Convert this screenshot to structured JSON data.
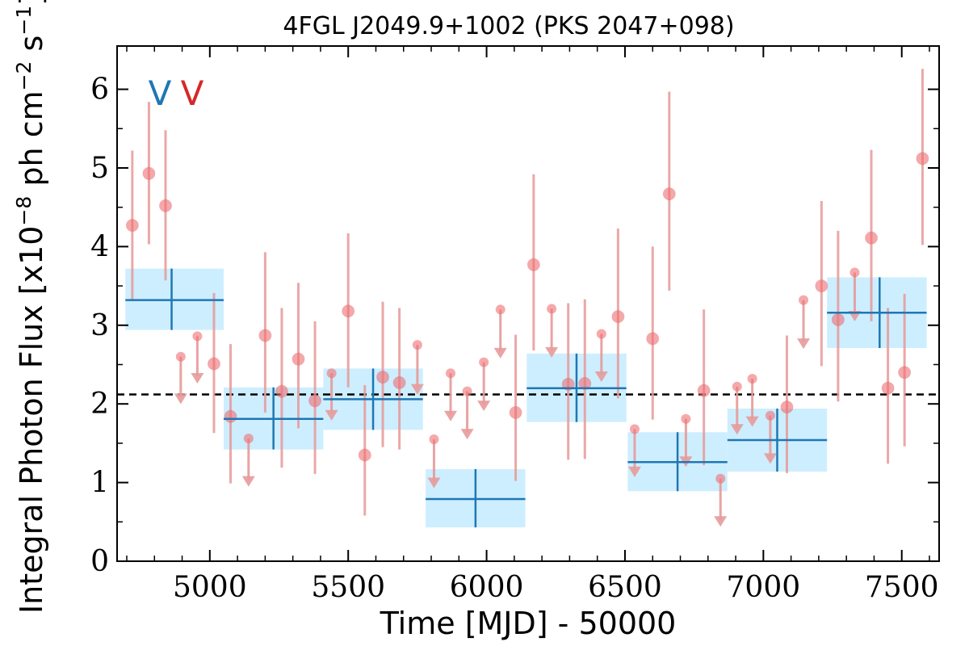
{
  "chart_data": {
    "type": "scatter",
    "title": "4FGL J2049.9+1002 (PKS 2047+098)",
    "xlabel": "Time [MJD] - 50000",
    "ylabel": "Integral Photon Flux [x10",
    "ylabel_exp1": "−8",
    "ylabel_mid": " ph cm",
    "ylabel_exp2": "−2",
    "ylabel_mid2": " s",
    "ylabel_exp3": "−1",
    "ylabel_end": "]",
    "xlim": [
      4665,
      7635
    ],
    "ylim": [
      0,
      6.55
    ],
    "xticks": [
      5000,
      5500,
      6000,
      6500,
      7000,
      7500
    ],
    "xtick_labels": [
      "5000",
      "5500",
      "6000",
      "6500",
      "7000",
      "7500"
    ],
    "yticks": [
      0,
      1,
      2,
      3,
      4,
      5,
      6
    ],
    "ytick_labels": [
      "0",
      "1",
      "2",
      "3",
      "4",
      "5",
      "6"
    ],
    "mean_flux": 2.12,
    "markers": [
      {
        "label": "V",
        "color": "#1f77b4"
      },
      {
        "label": "V",
        "color": "#d62728"
      }
    ],
    "colors": {
      "points": "#ef6f73",
      "errorbars": "#e79a9a",
      "bins": "#1f77b4",
      "bin_fill": "#cdeefe"
    },
    "series": [
      {
        "kind": "monthly_detections",
        "points": [
          {
            "x": 4720,
            "y": 4.27,
            "ylo": 3.32,
            "yhi": 5.22
          },
          {
            "x": 4780,
            "y": 4.93,
            "ylo": 4.03,
            "yhi": 5.84
          },
          {
            "x": 4840,
            "y": 4.52,
            "ylo": 3.57,
            "yhi": 5.48
          },
          {
            "x": 5015,
            "y": 2.51,
            "ylo": 1.63,
            "yhi": 3.41
          },
          {
            "x": 5075,
            "y": 1.84,
            "ylo": 0.99,
            "yhi": 2.76
          },
          {
            "x": 5200,
            "y": 2.87,
            "ylo": 1.89,
            "yhi": 3.93
          },
          {
            "x": 5260,
            "y": 2.16,
            "ylo": 1.19,
            "yhi": 3.22
          },
          {
            "x": 5320,
            "y": 2.57,
            "ylo": 1.69,
            "yhi": 3.54
          },
          {
            "x": 5380,
            "y": 2.04,
            "ylo": 1.11,
            "yhi": 3.05
          },
          {
            "x": 5500,
            "y": 3.18,
            "ylo": 2.21,
            "yhi": 4.17
          },
          {
            "x": 5560,
            "y": 1.35,
            "ylo": 0.58,
            "yhi": 2.24
          },
          {
            "x": 5625,
            "y": 2.34,
            "ylo": 1.45,
            "yhi": 3.3
          },
          {
            "x": 5685,
            "y": 2.27,
            "ylo": 1.42,
            "yhi": 3.22
          },
          {
            "x": 6105,
            "y": 1.89,
            "ylo": 1.02,
            "yhi": 2.88
          },
          {
            "x": 6170,
            "y": 3.77,
            "ylo": 2.68,
            "yhi": 4.92
          },
          {
            "x": 6295,
            "y": 2.25,
            "ylo": 1.29,
            "yhi": 3.28
          },
          {
            "x": 6355,
            "y": 2.26,
            "ylo": 1.3,
            "yhi": 3.33
          },
          {
            "x": 6475,
            "y": 3.11,
            "ylo": 2.07,
            "yhi": 4.23
          },
          {
            "x": 6600,
            "y": 2.83,
            "ylo": 1.8,
            "yhi": 4.0
          },
          {
            "x": 6660,
            "y": 4.67,
            "ylo": 3.44,
            "yhi": 5.97
          },
          {
            "x": 6785,
            "y": 2.17,
            "ylo": 1.22,
            "yhi": 3.2
          },
          {
            "x": 7085,
            "y": 1.96,
            "ylo": 1.12,
            "yhi": 2.87
          },
          {
            "x": 7210,
            "y": 3.5,
            "ylo": 2.48,
            "yhi": 4.58
          },
          {
            "x": 7270,
            "y": 3.07,
            "ylo": 2.03,
            "yhi": 4.2
          },
          {
            "x": 7390,
            "y": 4.11,
            "ylo": 3.05,
            "yhi": 5.23
          },
          {
            "x": 7450,
            "y": 2.2,
            "ylo": 1.24,
            "yhi": 3.22
          },
          {
            "x": 7510,
            "y": 2.4,
            "ylo": 1.46,
            "yhi": 3.4
          },
          {
            "x": 7575,
            "y": 5.12,
            "ylo": 4.02,
            "yhi": 6.26
          }
        ]
      },
      {
        "kind": "upper_limits",
        "points": [
          {
            "x": 4895,
            "y": 2.6,
            "tip": 2.05
          },
          {
            "x": 4955,
            "y": 2.86,
            "tip": 2.31
          },
          {
            "x": 5140,
            "y": 1.56,
            "tip": 1.0
          },
          {
            "x": 5440,
            "y": 2.39,
            "tip": 1.84
          },
          {
            "x": 5750,
            "y": 2.75,
            "tip": 2.17
          },
          {
            "x": 5810,
            "y": 1.55,
            "tip": 0.98
          },
          {
            "x": 5870,
            "y": 2.39,
            "tip": 1.83
          },
          {
            "x": 5930,
            "y": 2.16,
            "tip": 1.6
          },
          {
            "x": 5990,
            "y": 2.53,
            "tip": 1.96
          },
          {
            "x": 6050,
            "y": 3.2,
            "tip": 2.63
          },
          {
            "x": 6235,
            "y": 3.21,
            "tip": 2.64
          },
          {
            "x": 6415,
            "y": 2.89,
            "tip": 2.33
          },
          {
            "x": 6535,
            "y": 1.68,
            "tip": 1.12
          },
          {
            "x": 6720,
            "y": 1.81,
            "tip": 1.25
          },
          {
            "x": 6845,
            "y": 1.05,
            "tip": 0.49
          },
          {
            "x": 6905,
            "y": 2.22,
            "tip": 1.66
          },
          {
            "x": 6960,
            "y": 2.32,
            "tip": 1.76
          },
          {
            "x": 7025,
            "y": 1.85,
            "tip": 1.29
          },
          {
            "x": 7145,
            "y": 3.32,
            "tip": 2.75
          },
          {
            "x": 7330,
            "y": 3.67,
            "tip": 3.1
          }
        ]
      },
      {
        "kind": "bayesian_blocks",
        "blocks": [
          {
            "x0": 4695,
            "x1": 5050,
            "xc": 4862,
            "y": 3.32,
            "ylo": 2.94,
            "yhi": 3.72
          },
          {
            "x0": 5050,
            "x1": 5410,
            "xc": 5230,
            "y": 1.81,
            "ylo": 1.42,
            "yhi": 2.21
          },
          {
            "x0": 5410,
            "x1": 5770,
            "xc": 5590,
            "y": 2.06,
            "ylo": 1.67,
            "yhi": 2.45
          },
          {
            "x0": 5780,
            "x1": 6140,
            "xc": 5960,
            "y": 0.79,
            "ylo": 0.43,
            "yhi": 1.17
          },
          {
            "x0": 6145,
            "x1": 6505,
            "xc": 6325,
            "y": 2.2,
            "ylo": 1.77,
            "yhi": 2.64
          },
          {
            "x0": 6510,
            "x1": 6870,
            "xc": 6690,
            "y": 1.26,
            "ylo": 0.89,
            "yhi": 1.64
          },
          {
            "x0": 6870,
            "x1": 7230,
            "xc": 7050,
            "y": 1.54,
            "ylo": 1.14,
            "yhi": 1.94
          },
          {
            "x0": 7230,
            "x1": 7590,
            "xc": 7420,
            "y": 3.16,
            "ylo": 2.71,
            "yhi": 3.61
          }
        ]
      }
    ]
  }
}
